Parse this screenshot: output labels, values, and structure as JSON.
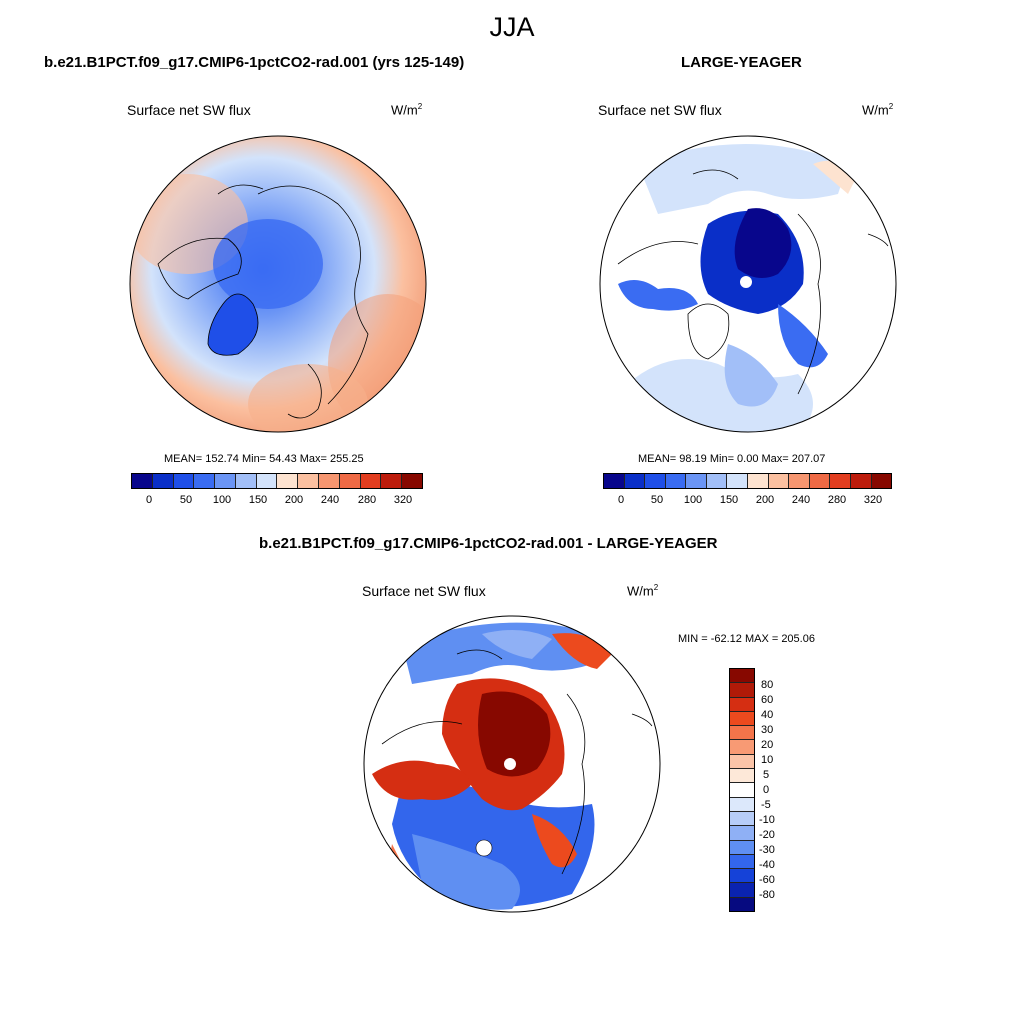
{
  "figure": {
    "season": "JJA"
  },
  "panels": [
    {
      "title": "b.e21.B1PCT.f09_g17.CMIP6-1pctCO2-rad.001 (yrs 125-149)",
      "variable": "Surface net SW flux",
      "units_base": "W/m",
      "units_exp": "2",
      "stats": "MEAN= 152.74  Min=  54.43  Max= 255.25",
      "projection": "north-polar-stereographic",
      "field": "pole-to-ocean gradient, blue over Arctic and Greenland, orange/red over mid-latitude oceans",
      "polar_hole": false
    },
    {
      "title": "LARGE-YEAGER",
      "variable": "Surface net SW flux",
      "units_base": "W/m",
      "units_exp": "2",
      "stats": "MEAN=  98.19  Min=   0.00  Max= 207.07",
      "projection": "north-polar-stereographic",
      "field": "ocean-only, dark blue over Arctic Ocean, land masked white",
      "polar_hole": true
    }
  ],
  "diff_panel": {
    "title": "b.e21.B1PCT.f09_g17.CMIP6-1pctCO2-rad.001 - LARGE-YEAGER",
    "variable": "Surface net SW flux",
    "units_base": "W/m",
    "units_exp": "2",
    "stats": "MIN = -62.12 MAX = 205.06",
    "projection": "north-polar-stereographic",
    "field": "dark red over Arctic Ocean, blue over North Atlantic and Pacific, land masked white",
    "polar_hole": true
  },
  "colorbar_main": {
    "colors": [
      "#08068c",
      "#0a2fc8",
      "#1f4fe8",
      "#3a6cf2",
      "#6b95f5",
      "#a2bff8",
      "#d3e3fb",
      "#fde3d0",
      "#fbc0a0",
      "#f69670",
      "#ef6a45",
      "#e23d1f",
      "#bd1c0c",
      "#870800"
    ],
    "ticks": [
      "0",
      "50",
      "100",
      "150",
      "200",
      "240",
      "280",
      "320"
    ],
    "tick_positions": [
      1,
      2,
      3,
      4,
      5,
      6,
      7,
      8
    ]
  },
  "colorbar_diff": {
    "colors": [
      "#870800",
      "#b01a08",
      "#d52e12",
      "#ec4a1e",
      "#f4744a",
      "#f89a74",
      "#fbc4a8",
      "#fde8d8",
      "#ffffff",
      "#dce8fb",
      "#b7cdf8",
      "#8fb0f5",
      "#5f8ff2",
      "#3366ec",
      "#1542d8",
      "#0a23b0",
      "#060a80"
    ],
    "labels": [
      "80",
      "60",
      "40",
      "30",
      "20",
      "10",
      "5",
      "0",
      "-5",
      "-10",
      "-20",
      "-30",
      "-40",
      "-60",
      "-80"
    ]
  }
}
